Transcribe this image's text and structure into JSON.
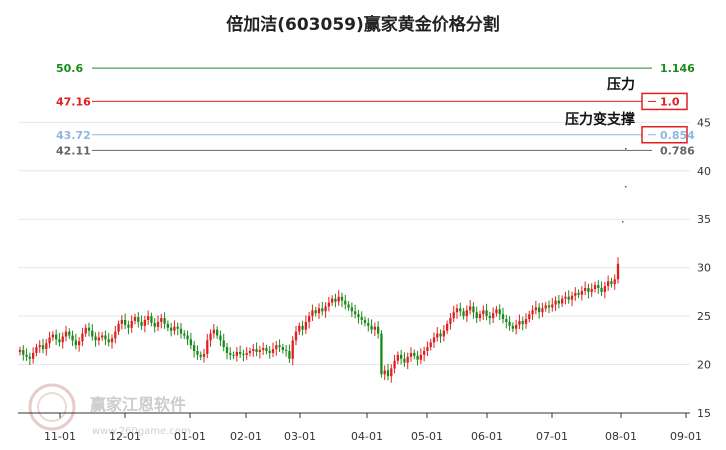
{
  "chart_data": {
    "type": "candlestick",
    "title": "倍加洁(603059)赢家黄金价格分割",
    "ylim": [
      15,
      53.5
    ],
    "yticks": [
      15,
      20,
      25,
      30,
      35,
      40,
      45
    ],
    "xticks": [
      "11-01",
      "12-01",
      "01-01",
      "02-01",
      "03-01",
      "04-01",
      "05-01",
      "06-01",
      "07-01",
      "08-01",
      "09-01"
    ],
    "levels": [
      {
        "value": 50.6,
        "label": "50.6",
        "ratio": "1.146",
        "color": "#1a8a1a"
      },
      {
        "value": 47.16,
        "label": "47.16",
        "ratio": "1.0",
        "color": "#e02020"
      },
      {
        "value": 43.72,
        "label": "43.72",
        "ratio": "0.854",
        "color": "#8fb8e0"
      },
      {
        "value": 42.11,
        "label": "42.11",
        "ratio": "0.786",
        "color": "#666666"
      }
    ],
    "annotations": {
      "resistance": "压力",
      "resistance_to_support": "压力变支撑"
    },
    "up_color": "#e02020",
    "down_color": "#1a8a1a",
    "series": [
      {
        "month": "10",
        "closes": [
          21.5,
          21.0,
          20.8,
          20.6,
          21.2,
          21.8,
          22.0,
          21.6
        ]
      },
      {
        "month": "11",
        "closes": [
          22.2,
          22.8,
          23.1,
          22.6,
          22.3,
          22.9,
          23.4,
          23.0,
          22.5,
          22.0,
          22.4,
          23.2,
          23.8,
          23.5,
          22.9,
          22.5,
          22.8,
          23.0,
          22.6,
          22.3,
          22.7
        ]
      },
      {
        "month": "12",
        "closes": [
          23.4,
          24.2,
          24.6,
          24.1,
          23.8,
          24.5,
          24.9,
          24.4,
          24.0,
          24.6,
          25.0,
          24.3,
          23.9,
          24.4,
          24.8,
          24.2,
          23.8,
          23.5,
          23.9,
          23.7,
          23.2,
          23.0
        ]
      },
      {
        "month": "01",
        "closes": [
          22.6,
          22.0,
          21.4,
          21.0,
          20.8,
          21.1,
          22.5,
          23.2,
          23.6,
          23.0,
          22.5,
          21.8,
          21.2,
          21.0,
          20.9,
          21.3,
          21.1,
          21.0
        ]
      },
      {
        "month": "02",
        "closes": [
          21.2,
          21.4,
          21.6,
          21.3,
          21.5,
          21.7,
          21.4,
          21.2,
          21.6,
          22.0,
          21.8,
          21.5,
          21.4,
          20.6
        ]
      },
      {
        "month": "03",
        "closes": [
          22.5,
          23.4,
          24.0,
          23.6,
          24.4,
          25.0,
          25.6,
          25.3,
          25.8,
          25.5,
          26.0,
          26.4,
          26.8,
          26.5,
          27.0,
          26.6,
          26.2,
          25.9,
          25.5,
          25.2,
          24.9,
          24.6
        ]
      },
      {
        "month": "04",
        "closes": [
          24.3,
          24.0,
          23.6,
          23.9,
          23.2,
          19.0,
          19.4,
          18.8,
          19.6,
          20.4,
          21.0,
          20.6,
          20.2,
          20.8,
          21.2,
          20.9,
          20.5,
          21.0
        ]
      },
      {
        "month": "05",
        "closes": [
          21.4,
          21.8,
          22.3,
          22.8,
          23.2,
          22.9,
          23.5,
          24.2,
          24.8,
          25.4,
          25.8,
          25.5,
          25.0,
          25.6,
          26.0,
          25.4,
          24.8,
          25.2,
          25.6,
          25.0
        ]
      },
      {
        "month": "06",
        "closes": [
          24.8,
          25.3,
          25.7,
          25.2,
          24.7,
          24.4,
          24.0,
          23.7,
          24.1,
          24.5,
          24.2,
          24.7,
          25.2,
          25.6,
          25.9,
          25.4,
          25.8,
          26.1,
          25.9
        ]
      },
      {
        "month": "07",
        "closes": [
          26.2,
          26.6,
          26.3,
          26.8,
          27.0,
          26.7,
          27.1,
          27.4,
          27.2,
          27.6,
          27.9,
          27.5,
          27.8,
          28.2,
          27.9,
          27.5,
          28.1,
          28.6,
          28.3,
          28.8
        ]
      },
      {
        "month": "08",
        "closes": [
          30.4
        ]
      }
    ]
  }
}
